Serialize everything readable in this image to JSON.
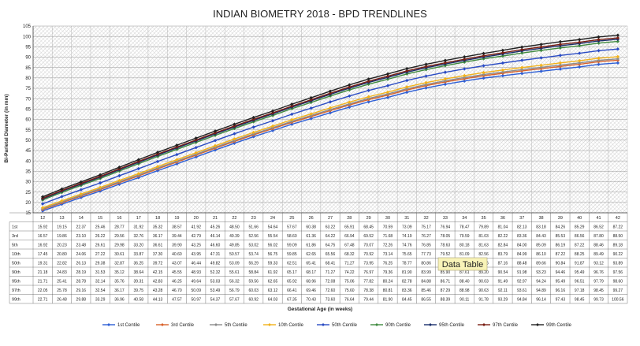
{
  "chart_data": {
    "type": "line",
    "title": "INDIAN BIOMETRY 2018 - BPD TRENDLINES",
    "xlabel": "Gestational Age (in weeks)",
    "ylabel": "Bi-Parietal Diameter (in mm)",
    "ylim": [
      15,
      105
    ],
    "yticks": [
      15,
      20,
      25,
      30,
      35,
      40,
      45,
      50,
      55,
      60,
      65,
      70,
      75,
      80,
      85,
      90,
      95,
      100,
      105
    ],
    "grid": true,
    "legend_position": "bottom",
    "x": [
      12,
      13,
      14,
      15,
      16,
      17,
      18,
      19,
      20,
      21,
      22,
      23,
      24,
      25,
      26,
      27,
      28,
      29,
      30,
      31,
      32,
      33,
      34,
      35,
      36,
      37,
      38,
      39,
      40,
      41,
      42
    ],
    "series": [
      {
        "name": "1st Centile",
        "table_label": "1st",
        "color": "#2e5fd6",
        "values": [
          15.92,
          19.15,
          22.37,
          25.46,
          28.77,
          31.92,
          35.32,
          38.57,
          41.92,
          45.26,
          48.5,
          51.66,
          54.64,
          57.67,
          60.38,
          63.22,
          65.91,
          68.45,
          70.59,
          73.09,
          75.17,
          76.94,
          78.47,
          79.89,
          81.04,
          82.13,
          83.18,
          84.26,
          85.29,
          86.52,
          87.22
        ]
      },
      {
        "name": "3rd Centile",
        "table_label": "3rd",
        "color": "#d9622b",
        "values": [
          16.57,
          19.86,
          23.1,
          26.22,
          29.56,
          32.76,
          36.17,
          39.44,
          42.79,
          46.14,
          49.39,
          52.56,
          55.54,
          58.6,
          61.36,
          64.22,
          66.94,
          69.52,
          71.68,
          74.19,
          76.27,
          78.05,
          79.59,
          81.03,
          82.22,
          83.36,
          84.43,
          85.53,
          86.56,
          87.8,
          88.5
        ]
      },
      {
        "name": "5th Centile",
        "table_label": "5th",
        "color": "#8c8c8c",
        "values": [
          16.92,
          20.23,
          23.48,
          26.61,
          29.98,
          33.2,
          36.61,
          39.9,
          43.25,
          46.6,
          49.85,
          53.02,
          56.02,
          59.09,
          61.86,
          64.75,
          67.48,
          70.07,
          72.26,
          74.76,
          76.85,
          78.63,
          80.18,
          81.63,
          82.84,
          84.0,
          85.09,
          86.19,
          87.22,
          88.46,
          89.18
        ]
      },
      {
        "name": "10th Centile",
        "table_label": "10th",
        "color": "#f2b21a",
        "values": [
          17.45,
          20.8,
          24.06,
          27.22,
          30.61,
          33.87,
          37.3,
          40.6,
          43.95,
          47.31,
          50.57,
          53.74,
          56.75,
          59.85,
          62.65,
          65.56,
          68.32,
          70.92,
          73.14,
          75.65,
          77.73,
          79.52,
          81.09,
          82.56,
          83.79,
          84.99,
          86.1,
          87.22,
          88.25,
          89.49,
          90.22
        ]
      },
      {
        "name": "50th Centile",
        "table_label": "50th",
        "color": "#2b4cc4",
        "values": [
          19.31,
          22.82,
          26.13,
          29.38,
          32.87,
          36.25,
          39.72,
          43.07,
          46.44,
          49.82,
          53.09,
          56.29,
          59.33,
          62.51,
          65.41,
          68.41,
          71.27,
          73.95,
          76.25,
          78.77,
          80.86,
          82.71,
          84.33,
          85.86,
          87.16,
          88.48,
          89.66,
          90.84,
          91.87,
          93.12,
          93.89
        ]
      },
      {
        "name": "90th Centile",
        "table_label": "90th",
        "color": "#3f8a3f",
        "values": [
          21.18,
          24.83,
          28.19,
          31.53,
          35.12,
          38.64,
          42.15,
          45.55,
          48.93,
          52.32,
          55.61,
          58.84,
          61.92,
          65.17,
          68.17,
          71.27,
          74.22,
          76.97,
          79.36,
          81.9,
          83.99,
          85.9,
          87.61,
          89.2,
          90.54,
          91.98,
          93.23,
          94.46,
          95.49,
          96.76,
          97.56
        ]
      },
      {
        "name": "95th Centile",
        "table_label": "95th",
        "color": "#1a2f6b",
        "values": [
          21.71,
          25.41,
          28.78,
          32.14,
          35.76,
          39.31,
          42.83,
          46.25,
          49.64,
          53.03,
          56.32,
          59.56,
          62.65,
          65.92,
          68.96,
          72.08,
          75.06,
          77.82,
          80.24,
          82.78,
          84.88,
          86.71,
          88.4,
          90.03,
          91.49,
          92.97,
          94.24,
          95.49,
          96.51,
          97.79,
          98.6
        ]
      },
      {
        "name": "97th Centile",
        "table_label": "97th",
        "color": "#7a1f14",
        "values": [
          22.05,
          25.78,
          29.16,
          32.54,
          36.17,
          39.75,
          43.28,
          46.7,
          50.09,
          53.49,
          56.79,
          60.03,
          63.12,
          66.41,
          69.46,
          72.6,
          75.6,
          78.38,
          80.81,
          83.36,
          85.46,
          87.29,
          88.98,
          90.63,
          92.11,
          93.61,
          94.89,
          96.16,
          97.18,
          98.45,
          99.27
        ]
      },
      {
        "name": "99th Centile",
        "table_label": "99th",
        "color": "#222222",
        "values": [
          22.71,
          26.48,
          29.88,
          33.29,
          36.96,
          40.58,
          44.13,
          47.57,
          50.97,
          54.37,
          57.67,
          60.92,
          64.03,
          67.35,
          70.43,
          73.6,
          76.64,
          79.44,
          81.9,
          84.45,
          86.55,
          88.39,
          90.11,
          91.78,
          93.29,
          94.84,
          96.14,
          97.43,
          98.45,
          99.73,
          100.56
        ]
      }
    ],
    "annotation": "Data Table"
  }
}
